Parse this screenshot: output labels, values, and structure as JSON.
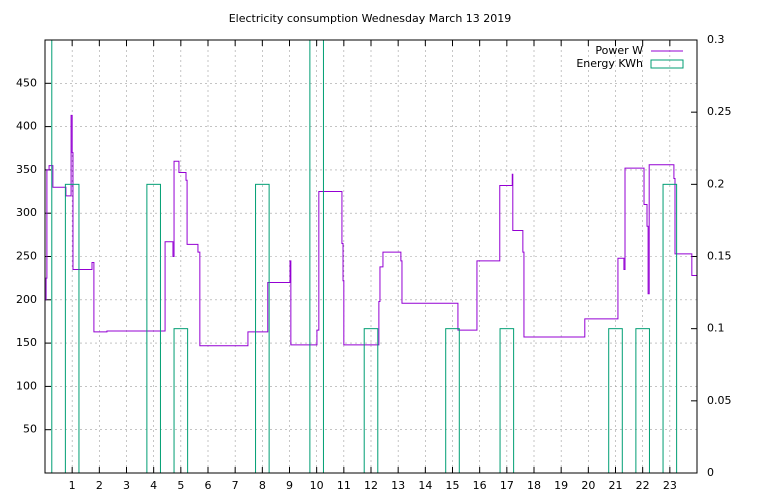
{
  "chart_data": {
    "type": "line",
    "title": "Electricity consumption Wednesday March 13 2019",
    "xlim": [
      0,
      24
    ],
    "xticks": [
      1,
      2,
      3,
      4,
      5,
      6,
      7,
      8,
      9,
      10,
      11,
      12,
      13,
      14,
      15,
      16,
      17,
      18,
      19,
      20,
      21,
      22,
      23
    ],
    "ylim": [
      0,
      500
    ],
    "yticks": [
      50,
      100,
      150,
      200,
      250,
      300,
      350,
      400,
      450
    ],
    "y2lim": [
      0,
      0.3
    ],
    "y2ticks": [
      0,
      0.05,
      0.1,
      0.15,
      0.2,
      0.25,
      0.3
    ],
    "grid": true,
    "legend": "top-right",
    "series": [
      {
        "name": "Power W",
        "color": "#9400d3",
        "style": "steps",
        "x": [
          0,
          0.04,
          0.07,
          0.15,
          0.29,
          0.77,
          0.96,
          1.0,
          1.03,
          1.73,
          1.8,
          2.28,
          4.42,
          4.71,
          4.75,
          4.93,
          5.19,
          5.23,
          5.63,
          5.7,
          7.47,
          8.2,
          9.02,
          9.05,
          10.01,
          10.08,
          10.93,
          10.97,
          11.0,
          12.29,
          12.33,
          12.44,
          13.1,
          13.14,
          15.2,
          15.9,
          16.74,
          17.2,
          17.22,
          17.59,
          17.63,
          19.87,
          21.09,
          21.31,
          21.35,
          22.05,
          22.16,
          22.2,
          22.24,
          23.15,
          23.19,
          23.81,
          24
        ],
        "values": [
          200,
          225,
          350,
          355,
          330,
          320,
          413,
          370,
          235,
          243,
          163,
          164,
          267,
          250,
          360,
          347,
          338,
          264,
          255,
          147,
          163,
          220,
          245,
          148,
          165,
          325,
          265,
          222,
          148,
          198,
          238,
          255,
          245,
          196,
          165,
          245,
          332,
          345,
          280,
          255,
          157,
          178,
          248,
          235,
          352,
          310,
          285,
          207,
          356,
          340,
          253,
          228,
          228
        ]
      },
      {
        "name": "Energy KWh",
        "color": "#009e73",
        "style": "boxes",
        "axis": "y2",
        "x": [
          0,
          1,
          4,
          5,
          8,
          10,
          12,
          15,
          17,
          21,
          22,
          23
        ],
        "values": [
          0.3,
          0.2,
          0.2,
          0.1,
          0.2,
          0.3,
          0.1,
          0.1,
          0.1,
          0.1,
          0.1,
          0.2
        ]
      }
    ]
  }
}
